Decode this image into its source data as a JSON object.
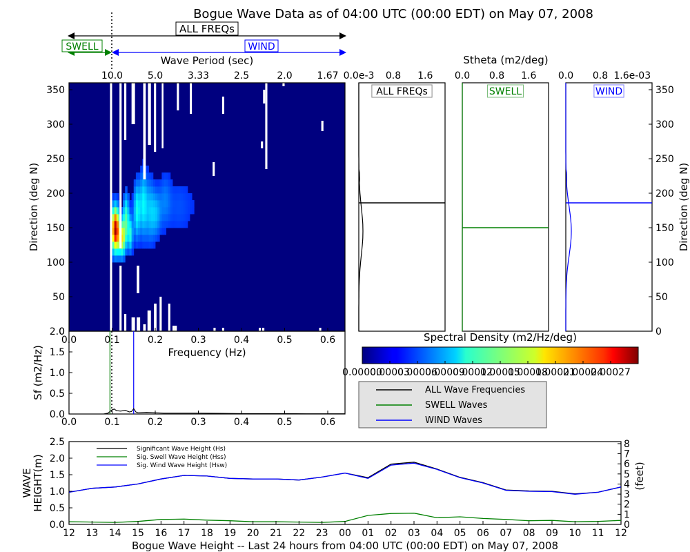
{
  "title": "Bogue Wave Data as of 04:00 UTC (00:00 EDT) on May 07, 2008",
  "bands": {
    "all_label": "ALL FREQs",
    "swell_label": "SWELL",
    "wind_label": "WIND",
    "period_title": "Wave Period (sec)",
    "period_ticks": [
      "10.0",
      "5.0",
      "3.33",
      "2.5",
      "2.0",
      "1.67"
    ]
  },
  "stheta_title": "Stheta (m2/deg)",
  "colors": {
    "all": "#000000",
    "swell": "#008000",
    "wind": "#0000ff",
    "heat_bg": "#00007f",
    "legend_bg": "#e3e3e3"
  },
  "chart_data": [
    {
      "id": "directional-spectrum",
      "type": "heatmap",
      "xlabel": "Frequency (Hz)",
      "ylabel": "Direction (deg N)",
      "xlim": [
        0.0,
        0.64
      ],
      "ylim": [
        0,
        360
      ],
      "x_ticks": [
        "0.0",
        "0.1",
        "0.2",
        "0.3",
        "0.4",
        "0.5",
        "0.6"
      ],
      "y_ticks": [
        "0",
        "50",
        "100",
        "150",
        "200",
        "250",
        "300",
        "350"
      ],
      "colorscale": "jet",
      "peak": {
        "freq": 0.1,
        "direction": 150
      }
    },
    {
      "id": "stheta-profiles",
      "type": "line",
      "panels": [
        {
          "label": "ALL FREQs",
          "x_ticks": [
            "0.0e-3",
            "0.8",
            "1.6"
          ],
          "color": "#000000",
          "mean_direction": 186
        },
        {
          "label": "SWELL",
          "x_ticks": [
            "0.0",
            "0.8",
            "1.6"
          ],
          "color": "#008000",
          "mean_direction": 150
        },
        {
          "label": "WIND",
          "x_ticks": [
            "0.0",
            "0.8",
            "1.6e-03"
          ],
          "color": "#0000ff",
          "mean_direction": 186
        }
      ],
      "ylabel_right": "Direction (deg N)",
      "y_ticks": [
        "0",
        "50",
        "100",
        "150",
        "200",
        "250",
        "300",
        "350"
      ]
    },
    {
      "id": "spectral-density-colorbar",
      "type": "heatmap",
      "title": "Spectral Density (m2/Hz/deg)",
      "tick_labels": [
        "0.00000",
        "0.00003",
        "0.00006",
        "0.00009",
        "0.00012",
        "0.00015",
        "0.00018",
        "0.00021",
        "0.00024",
        "0.00027"
      ],
      "range": [
        0.0,
        0.0003
      ]
    },
    {
      "id": "frequency-spectrum",
      "type": "line",
      "xlabel": "",
      "ylabel": "Sf (m2/Hz)",
      "xlim": [
        0.0,
        0.64
      ],
      "ylim": [
        0.0,
        2.0
      ],
      "x_ticks": [
        "0.0",
        "0.1",
        "0.2",
        "0.3",
        "0.4",
        "0.5",
        "0.6"
      ],
      "y_ticks": [
        "0.0",
        "0.5",
        "1.0",
        "1.5",
        "2.0"
      ],
      "swell_marker": 0.095,
      "wind_marker": 0.15,
      "series": [
        {
          "name": "ALL Wave Frequencies",
          "x": [
            0.0,
            0.08,
            0.09,
            0.1,
            0.105,
            0.11,
            0.12,
            0.13,
            0.14,
            0.145,
            0.15,
            0.155,
            0.16,
            0.18,
            0.2,
            0.22,
            0.25,
            0.3,
            0.35,
            0.4,
            0.45,
            0.5,
            0.55,
            0.6,
            0.64
          ],
          "y": [
            0.0,
            0.0,
            0.02,
            0.1,
            0.12,
            0.08,
            0.07,
            0.09,
            0.05,
            0.06,
            0.13,
            0.05,
            0.03,
            0.04,
            0.03,
            0.02,
            0.02,
            0.02,
            0.015,
            0.01,
            0.01,
            0.01,
            0.005,
            0.005,
            0.005
          ]
        }
      ],
      "legend": [
        "ALL Wave Frequencies",
        "SWELL Waves",
        "WIND Waves"
      ]
    },
    {
      "id": "wave-height-24h",
      "type": "line",
      "xlabel": "Bogue Wave Height -- Last 24 hours from 04:00 UTC (00:00 EDT) on May 07, 2008",
      "ylabel": "WAVE HEIGHT(m)",
      "ylabel_right": "(feet)",
      "ylim": [
        0.0,
        2.5
      ],
      "y_ticks": [
        "0.0",
        "0.5",
        "1.0",
        "1.5",
        "2.0",
        "2.5"
      ],
      "y2_ticks": [
        "0",
        "1",
        "2",
        "3",
        "4",
        "5",
        "6",
        "7",
        "8"
      ],
      "categories": [
        "12",
        "13",
        "14",
        "15",
        "16",
        "17",
        "18",
        "19",
        "20",
        "21",
        "22",
        "23",
        "00",
        "01",
        "02",
        "03",
        "04",
        "05",
        "06",
        "07",
        "08",
        "09",
        "10",
        "11",
        "12"
      ],
      "series": [
        {
          "name": "Significant Wave Height (Hs)",
          "values": [
            0.97,
            1.09,
            1.13,
            1.22,
            1.37,
            1.48,
            1.46,
            1.39,
            1.37,
            1.37,
            1.34,
            1.43,
            1.55,
            1.41,
            1.82,
            1.88,
            1.67,
            1.42,
            1.26,
            1.04,
            1.01,
            1.0,
            0.92,
            0.97,
            1.13
          ]
        },
        {
          "name": "Sig. Swell Wave Height (Hss)",
          "values": [
            0.08,
            0.07,
            0.06,
            0.09,
            0.15,
            0.16,
            0.13,
            0.11,
            0.08,
            0.08,
            0.07,
            0.06,
            0.09,
            0.27,
            0.33,
            0.34,
            0.2,
            0.23,
            0.18,
            0.15,
            0.11,
            0.12,
            0.08,
            0.09,
            0.12
          ]
        },
        {
          "name": "Sig. Wind Wave Height (Hsw)",
          "values": [
            0.97,
            1.09,
            1.13,
            1.22,
            1.37,
            1.48,
            1.46,
            1.39,
            1.37,
            1.37,
            1.34,
            1.43,
            1.55,
            1.39,
            1.79,
            1.85,
            1.66,
            1.41,
            1.25,
            1.03,
            1.0,
            0.99,
            0.91,
            0.97,
            1.13
          ]
        }
      ]
    }
  ]
}
